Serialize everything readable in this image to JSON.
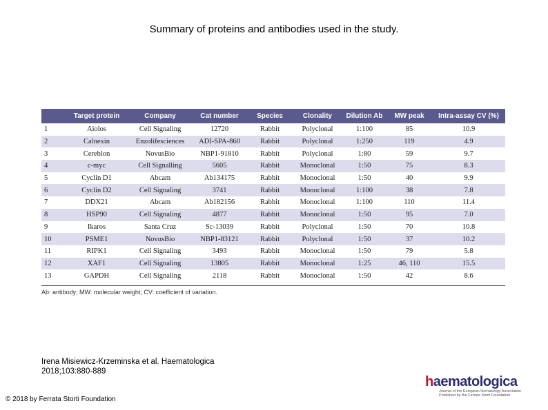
{
  "title": "Summary of proteins and antibodies used in the study.",
  "table": {
    "headers": [
      "",
      "Target protein",
      "Company",
      "Cat number",
      "Species",
      "Clonality",
      "Dilution Ab",
      "MW peak",
      "Intra-assay CV (%)"
    ],
    "rows": [
      [
        "1",
        "Aiolos",
        "Cell Signaling",
        "12720",
        "Rabbit",
        "Polyclonal",
        "1:100",
        "85",
        "10.9"
      ],
      [
        "2",
        "Calnexin",
        "Enzolifesciences",
        "ADI-SPA-860",
        "Rabbit",
        "Polyclonal",
        "1:250",
        "119",
        "4.9"
      ],
      [
        "3",
        "Cereblon",
        "NovusBio",
        "NBP1-91810",
        "Rabbit",
        "Polyclonal",
        "1:80",
        "59",
        "9.7"
      ],
      [
        "4",
        "c-myc",
        "Cell Signalling",
        "5605",
        "Rabbit",
        "Monoclonal",
        "1:50",
        "75",
        "8.3"
      ],
      [
        "5",
        "Cyclin D1",
        "Abcam",
        "Ab134175",
        "Rabbit",
        "Monoclonal",
        "1:50",
        "40",
        "9.9"
      ],
      [
        "6",
        "Cyclin D2",
        "Cell Signaling",
        "3741",
        "Rabbit",
        "Monoclonal",
        "1:100",
        "38",
        "7.8"
      ],
      [
        "7",
        "DDX21",
        "Abcam",
        "Ab182156",
        "Rabbit",
        "Monoclonal",
        "1:100",
        "110",
        "11.4"
      ],
      [
        "8",
        "HSP90",
        "Cell Signaling",
        "4877",
        "Rabbit",
        "Monoclonal",
        "1:50",
        "95",
        "7.0"
      ],
      [
        "9",
        "Ikaros",
        "Santa Cruz",
        "Sc-13039",
        "Rabbit",
        "Polyclonal",
        "1:50",
        "70",
        "10.8"
      ],
      [
        "10",
        "PSME1",
        "NovusBio",
        "NBP1-83121",
        "Rabbit",
        "Polyclonal",
        "1:50",
        "37",
        "10.2"
      ],
      [
        "11",
        "RIPK1",
        "Cell Signaling",
        "3493",
        "Rabbit",
        "Monoclonal",
        "1:50",
        "79",
        "5.8"
      ],
      [
        "12",
        "XAF1",
        "Cell Signaling",
        "13805",
        "Rabbit",
        "Monoclonal",
        "1:25",
        "46, 110",
        "15.5"
      ],
      [
        "13",
        "GAPDH",
        "Cell Signaling",
        "2118",
        "Rabbit",
        "Monoclonal",
        "1:50",
        "42",
        "8.6"
      ]
    ],
    "footnote": "Ab: antibody; MW: molecular weight; CV: coefficient of variation."
  },
  "citation": {
    "line1": "Irena Misiewicz-Krzeminska et al. Haematologica",
    "line2": "2018;103:880-889"
  },
  "copyright": "© 2018 by Ferrata Storti Foundation",
  "logo": {
    "h": "h",
    "rest": "aematologica",
    "subtitle": "Journal of the European Hematology Association Published by the Ferrata Storti Foundation"
  },
  "colors": {
    "header_bg": "#5b5a8e",
    "stripe": "#dcdcec"
  }
}
